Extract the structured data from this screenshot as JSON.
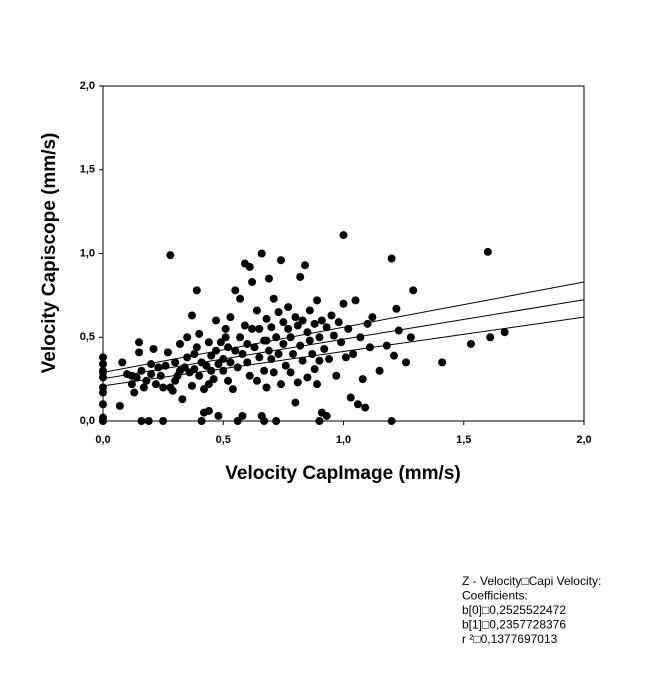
{
  "chart_data": {
    "type": "scatter",
    "x_label": "Velocity CapImage (mm/s)",
    "y_label": "Velocity Capiscope (mm/s)",
    "color": "#000000",
    "xlim": [
      0,
      2
    ],
    "ylim": [
      0,
      2
    ],
    "xticks": [
      {
        "value": 0,
        "label": "0,0"
      },
      {
        "value": 0.5,
        "label": "0,5"
      },
      {
        "value": 1,
        "label": "1,0"
      },
      {
        "value": 1.5,
        "label": "1,5"
      },
      {
        "value": 2,
        "label": "2,0"
      }
    ],
    "yticks": [
      {
        "value": 0,
        "label": "0,0"
      },
      {
        "value": 0.5,
        "label": "0,5"
      },
      {
        "value": 1,
        "label": "1,0"
      },
      {
        "value": 1.5,
        "label": "1,5"
      },
      {
        "value": 2,
        "label": "2,0"
      }
    ],
    "x": [
      0,
      0,
      0,
      0,
      0,
      0,
      0,
      0,
      0,
      0,
      0.07,
      0.08,
      0.1,
      0.12,
      0.12,
      0.13,
      0.14,
      0.15,
      0.15,
      0.16,
      0.17,
      0.18,
      0.2,
      0.2,
      0.21,
      0.22,
      0.23,
      0.24,
      0.25,
      0.26,
      0.27,
      0.28,
      0.28,
      0.29,
      0.3,
      0.3,
      0.31,
      0.32,
      0.32,
      0.33,
      0.34,
      0.35,
      0.35,
      0.36,
      0.37,
      0.37,
      0.38,
      0.38,
      0.39,
      0.39,
      0.4,
      0.4,
      0.41,
      0.42,
      0.42,
      0.43,
      0.44,
      0.44,
      0.45,
      0.45,
      0.46,
      0.47,
      0.47,
      0.48,
      0.48,
      0.49,
      0.5,
      0.5,
      0.51,
      0.51,
      0.52,
      0.52,
      0.53,
      0.53,
      0.54,
      0.55,
      0.55,
      0.56,
      0.57,
      0.57,
      0.58,
      0.58,
      0.59,
      0.59,
      0.6,
      0.6,
      0.61,
      0.61,
      0.62,
      0.62,
      0.63,
      0.64,
      0.64,
      0.65,
      0.65,
      0.66,
      0.66,
      0.67,
      0.67,
      0.68,
      0.68,
      0.69,
      0.69,
      0.7,
      0.7,
      0.71,
      0.71,
      0.72,
      0.72,
      0.73,
      0.73,
      0.74,
      0.74,
      0.75,
      0.75,
      0.76,
      0.77,
      0.77,
      0.78,
      0.78,
      0.79,
      0.8,
      0.8,
      0.81,
      0.81,
      0.82,
      0.82,
      0.83,
      0.83,
      0.84,
      0.85,
      0.85,
      0.86,
      0.86,
      0.87,
      0.88,
      0.88,
      0.89,
      0.89,
      0.9,
      0.9,
      0.91,
      0.91,
      0.92,
      0.93,
      0.93,
      0.94,
      0.95,
      0.96,
      0.97,
      0.98,
      0.99,
      1.0,
      1.0,
      1.01,
      1.02,
      1.03,
      1.04,
      1.05,
      1.06,
      1.07,
      1.08,
      1.09,
      1.1,
      1.11,
      1.12,
      1.15,
      1.18,
      1.2,
      1.2,
      1.21,
      1.22,
      1.23,
      1.26,
      1.28,
      1.29,
      1.41,
      1.53,
      1.6,
      1.61,
      1.67,
      0.16,
      0.19,
      0.25,
      0.41,
      0.56,
      0.67,
      0.68,
      0.44,
      0.9
    ],
    "values": [
      0.38,
      0.34,
      0.3,
      0.29,
      0.26,
      0.2,
      0.17,
      0.1,
      0.02,
      0,
      0.09,
      0.35,
      0.28,
      0.27,
      0.22,
      0.17,
      0.26,
      0.47,
      0.41,
      0.3,
      0.2,
      0.24,
      0.28,
      0.34,
      0.43,
      0.22,
      0.32,
      0.27,
      0.2,
      0.33,
      0.41,
      0.99,
      0.2,
      0.18,
      0.35,
      0.24,
      0.27,
      0.46,
      0.3,
      0.13,
      0.32,
      0.5,
      0.38,
      0.29,
      0.21,
      0.63,
      0.4,
      0.31,
      0.44,
      0.78,
      0.52,
      0.27,
      0.35,
      0.19,
      0.05,
      0.33,
      0.47,
      0.22,
      0.39,
      0.3,
      0.25,
      0.6,
      0.42,
      0.34,
      0.03,
      0.47,
      0.37,
      0.3,
      0.5,
      0.55,
      0.44,
      0.24,
      0.62,
      0.35,
      0.19,
      0.78,
      0.42,
      0.32,
      0.73,
      0.5,
      0.4,
      0.03,
      0.94,
      0.57,
      0.35,
      0.46,
      0.92,
      0.27,
      0.83,
      0.55,
      0.44,
      0.66,
      0.24,
      0.38,
      0.55,
      1.0,
      0.03,
      0.48,
      0.3,
      0.2,
      0.61,
      0.85,
      0.42,
      0.37,
      0.56,
      0.73,
      0.29,
      0.5,
      0,
      0.65,
      0.4,
      0.22,
      0.96,
      0.59,
      0.46,
      0.33,
      0.55,
      0.68,
      0.29,
      0.5,
      0.4,
      0.62,
      0.11,
      0.57,
      0.23,
      0.86,
      0.45,
      0.6,
      0.36,
      0.93,
      0.53,
      0.26,
      0.48,
      0.66,
      0.4,
      0.58,
      0.31,
      0.72,
      0.22,
      0.5,
      0.36,
      0.05,
      0.6,
      0.43,
      0.03,
      0.56,
      0.37,
      0.63,
      0.51,
      0.27,
      0.59,
      0.47,
      0.7,
      1.11,
      0.38,
      0.55,
      0.14,
      0.4,
      0.72,
      0.1,
      0.5,
      0.25,
      0.08,
      0.58,
      0.44,
      0.62,
      0.3,
      0.45,
      0.97,
      0,
      0.39,
      0.67,
      0.54,
      0.35,
      0.5,
      0.78,
      0.35,
      0.46,
      1.01,
      0.5,
      0.53,
      0,
      0,
      0,
      0,
      0,
      0,
      0.48,
      0.06,
      0
    ],
    "fit_lines": [
      {
        "x": [
          0,
          2
        ],
        "values": [
          0.29,
          0.83
        ]
      },
      {
        "x": [
          0,
          2
        ],
        "values": [
          0.2526,
          0.7241
        ]
      },
      {
        "x": [
          0,
          2
        ],
        "values": [
          0.21,
          0.62
        ]
      }
    ],
    "annotation": [
      "Z - Velocity□Capi Velocity:",
      "Coefficients:",
      "b[0]□0,2525522472",
      "b[1]□0,2357728376",
      "r ²□0,1377697013"
    ]
  }
}
